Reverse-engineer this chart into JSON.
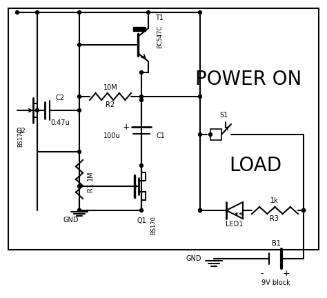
{
  "bg_color": "#ffffff",
  "line_color": "#000000",
  "text_color": "#000000",
  "figsize": [
    4.74,
    4.32
  ],
  "dpi": 100,
  "power_on_text": "POWER ON",
  "load_text": "LOAD",
  "components": {
    "T1_label": "T1",
    "T1_part": "BC547C",
    "Q1_label": "Q1",
    "Q1_part": "BS170",
    "Q2_label": "Q2",
    "Q2_part": "BS170",
    "R1_val": "1M",
    "R1_label": "R1",
    "R2_val": "10M",
    "R2_label": "R2",
    "R3_val": "1k",
    "R3_label": "R3",
    "C1_val": "100u",
    "C1_label": "C1",
    "C2_val": "0.47u",
    "C2_label": "C2",
    "S1_label": "S1",
    "LED_label": "LED1",
    "B1_label": "B1",
    "B1_val": "9V block",
    "GND": "GND"
  }
}
